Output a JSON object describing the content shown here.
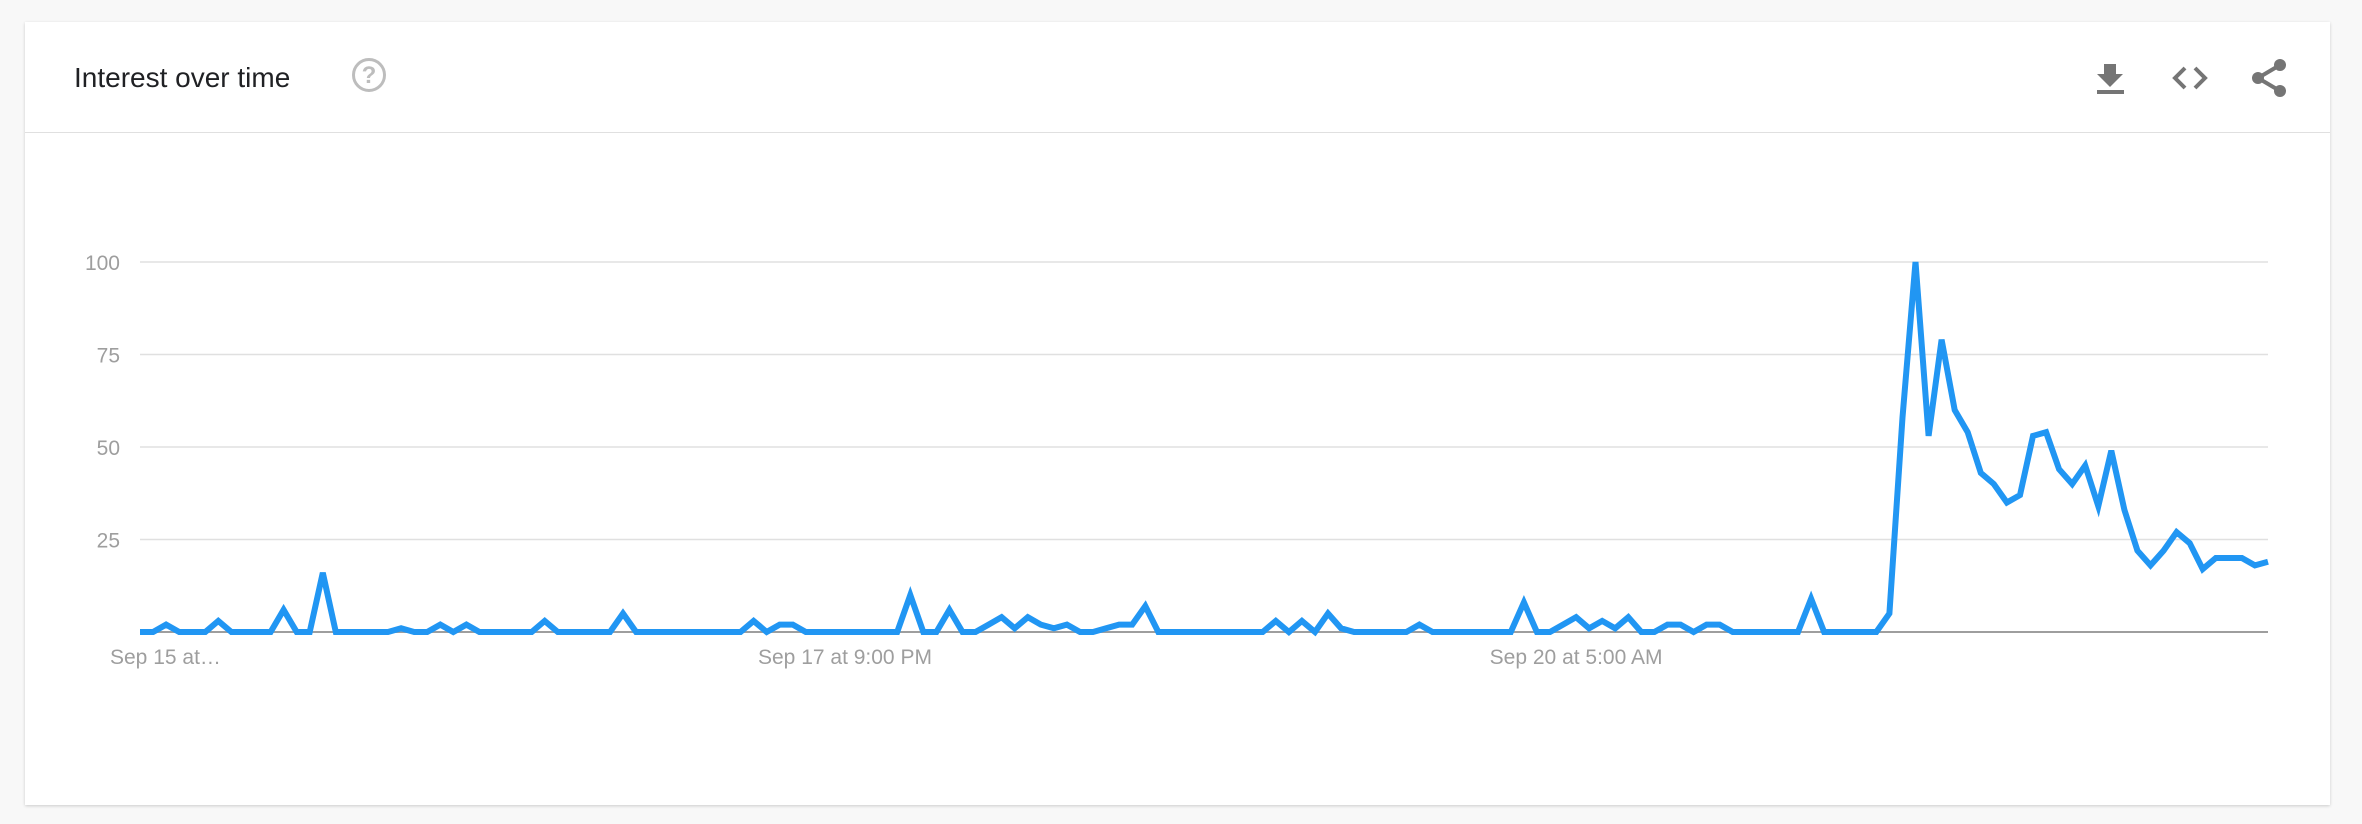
{
  "header": {
    "title": "Interest over time",
    "help_icon": "help-circle-icon",
    "actions": [
      {
        "name": "download-icon"
      },
      {
        "name": "embed-code-icon"
      },
      {
        "name": "share-icon"
      }
    ]
  },
  "colors": {
    "line": "#2196f3",
    "grid": "#e0e0e0",
    "axis": "#9e9e9e",
    "label": "#9e9e9e"
  },
  "chart_data": {
    "type": "line",
    "title": "Interest over time",
    "ylim": [
      0,
      100
    ],
    "yticks": [
      25,
      50,
      75,
      100
    ],
    "grid": true,
    "xticks": [
      {
        "index": 0,
        "label": "Sep 15 at…"
      },
      {
        "index": 54,
        "label": "Sep 17 at 9:00 PM"
      },
      {
        "index": 110,
        "label": "Sep 20 at 5:00 AM"
      }
    ],
    "values": [
      0,
      0,
      2,
      0,
      0,
      0,
      3,
      0,
      0,
      0,
      0,
      6,
      0,
      0,
      16,
      0,
      0,
      0,
      0,
      0,
      1,
      0,
      0,
      2,
      0,
      2,
      0,
      0,
      0,
      0,
      0,
      3,
      0,
      0,
      0,
      0,
      0,
      5,
      0,
      0,
      0,
      0,
      0,
      0,
      0,
      0,
      0,
      3,
      0,
      2,
      2,
      0,
      0,
      0,
      0,
      0,
      0,
      0,
      0,
      10,
      0,
      0,
      6,
      0,
      0,
      2,
      4,
      1,
      4,
      2,
      1,
      2,
      0,
      0,
      1,
      2,
      2,
      7,
      0,
      0,
      0,
      0,
      0,
      0,
      0,
      0,
      0,
      3,
      0,
      3,
      0,
      5,
      1,
      0,
      0,
      0,
      0,
      0,
      2,
      0,
      0,
      0,
      0,
      0,
      0,
      0,
      8,
      0,
      0,
      2,
      4,
      1,
      3,
      1,
      4,
      0,
      0,
      2,
      2,
      0,
      2,
      2,
      0,
      0,
      0,
      0,
      0,
      0,
      9,
      0,
      0,
      0,
      0,
      0,
      5,
      58,
      100,
      53,
      79,
      60,
      54,
      43,
      40,
      35,
      37,
      53,
      54,
      44,
      40,
      45,
      34,
      49,
      33,
      22,
      18,
      22,
      27,
      24,
      17,
      20,
      20,
      20,
      18,
      19
    ]
  }
}
